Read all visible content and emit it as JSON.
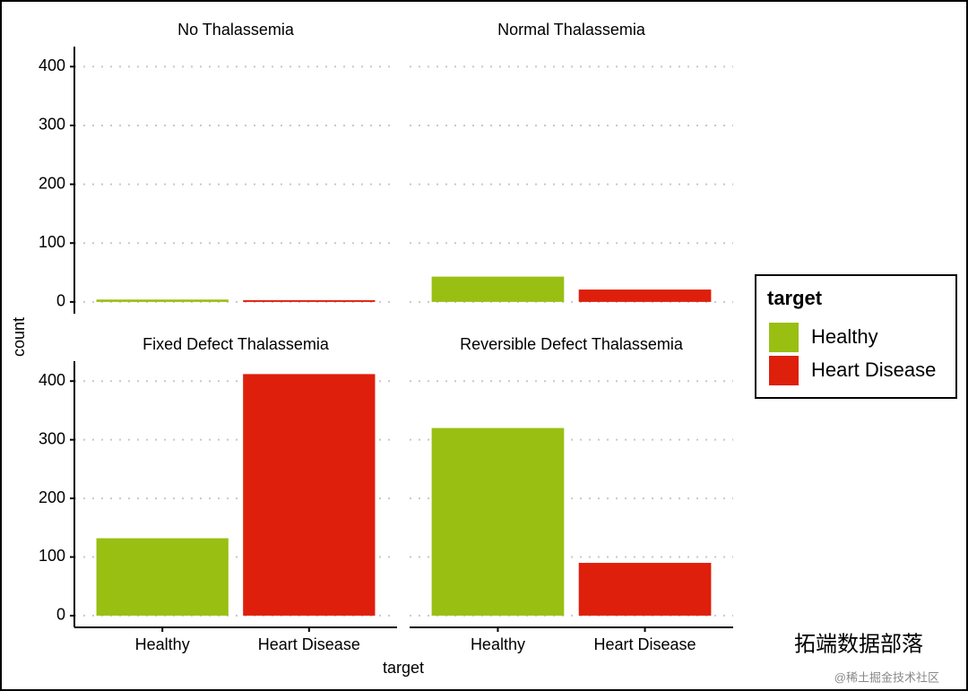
{
  "chart_data": {
    "type": "bar",
    "categories": [
      "Healthy",
      "Heart Disease"
    ],
    "colors": [
      "#99bf12",
      "#de1f0c"
    ],
    "xlabel": "target",
    "ylabel": "count",
    "ylim": [
      -20,
      434
    ],
    "yticks": [
      0,
      100,
      200,
      300,
      400
    ],
    "grid": true,
    "legend_title": "target",
    "legend_position": "right",
    "facets": [
      {
        "title": "No Thalassemia",
        "values": [
          4,
          3
        ]
      },
      {
        "title": "Normal Thalassemia",
        "values": [
          43,
          21
        ]
      },
      {
        "title": "Fixed Defect Thalassemia",
        "values": [
          132,
          412
        ]
      },
      {
        "title": "Reversible Defect Thalassemia",
        "values": [
          320,
          90
        ]
      }
    ]
  },
  "watermark": [
    "拓端数据部落",
    "@稀土掘金技术社区"
  ]
}
